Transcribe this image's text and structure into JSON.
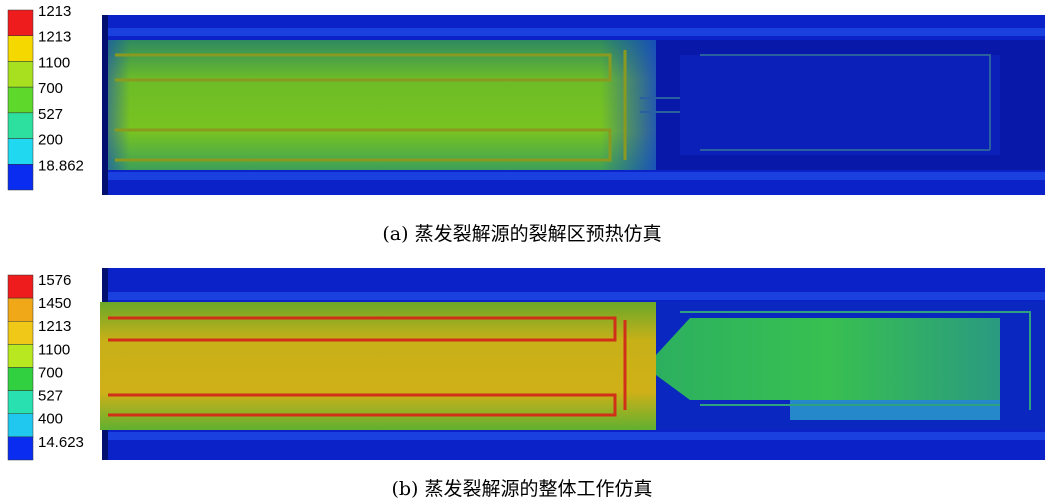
{
  "panels": [
    {
      "caption": "(a)  蒸发裂解源的裂解区预热仿真",
      "legend": [
        {
          "label": "1213",
          "color": "#ee1c1c"
        },
        {
          "label": "1213",
          "color": "#f5d800"
        },
        {
          "label": "1100",
          "color": "#a8e020"
        },
        {
          "label": "700",
          "color": "#5ed82a"
        },
        {
          "label": "527",
          "color": "#2ee0a0"
        },
        {
          "label": "200",
          "color": "#20d8f0"
        },
        {
          "label": "18.862",
          "color": "#0a2cf0"
        }
      ]
    },
    {
      "caption": "(b)  蒸发裂解源的整体工作仿真",
      "legend": [
        {
          "label": "1576",
          "color": "#ee1c1c"
        },
        {
          "label": "1450",
          "color": "#f0a818"
        },
        {
          "label": "1213",
          "color": "#f0c818"
        },
        {
          "label": "1100",
          "color": "#b8e820"
        },
        {
          "label": "700",
          "color": "#30d040"
        },
        {
          "label": "527",
          "color": "#28e0b0"
        },
        {
          "label": "400",
          "color": "#20c8f0"
        },
        {
          "label": "14.623",
          "color": "#0a2cf0"
        }
      ]
    }
  ]
}
